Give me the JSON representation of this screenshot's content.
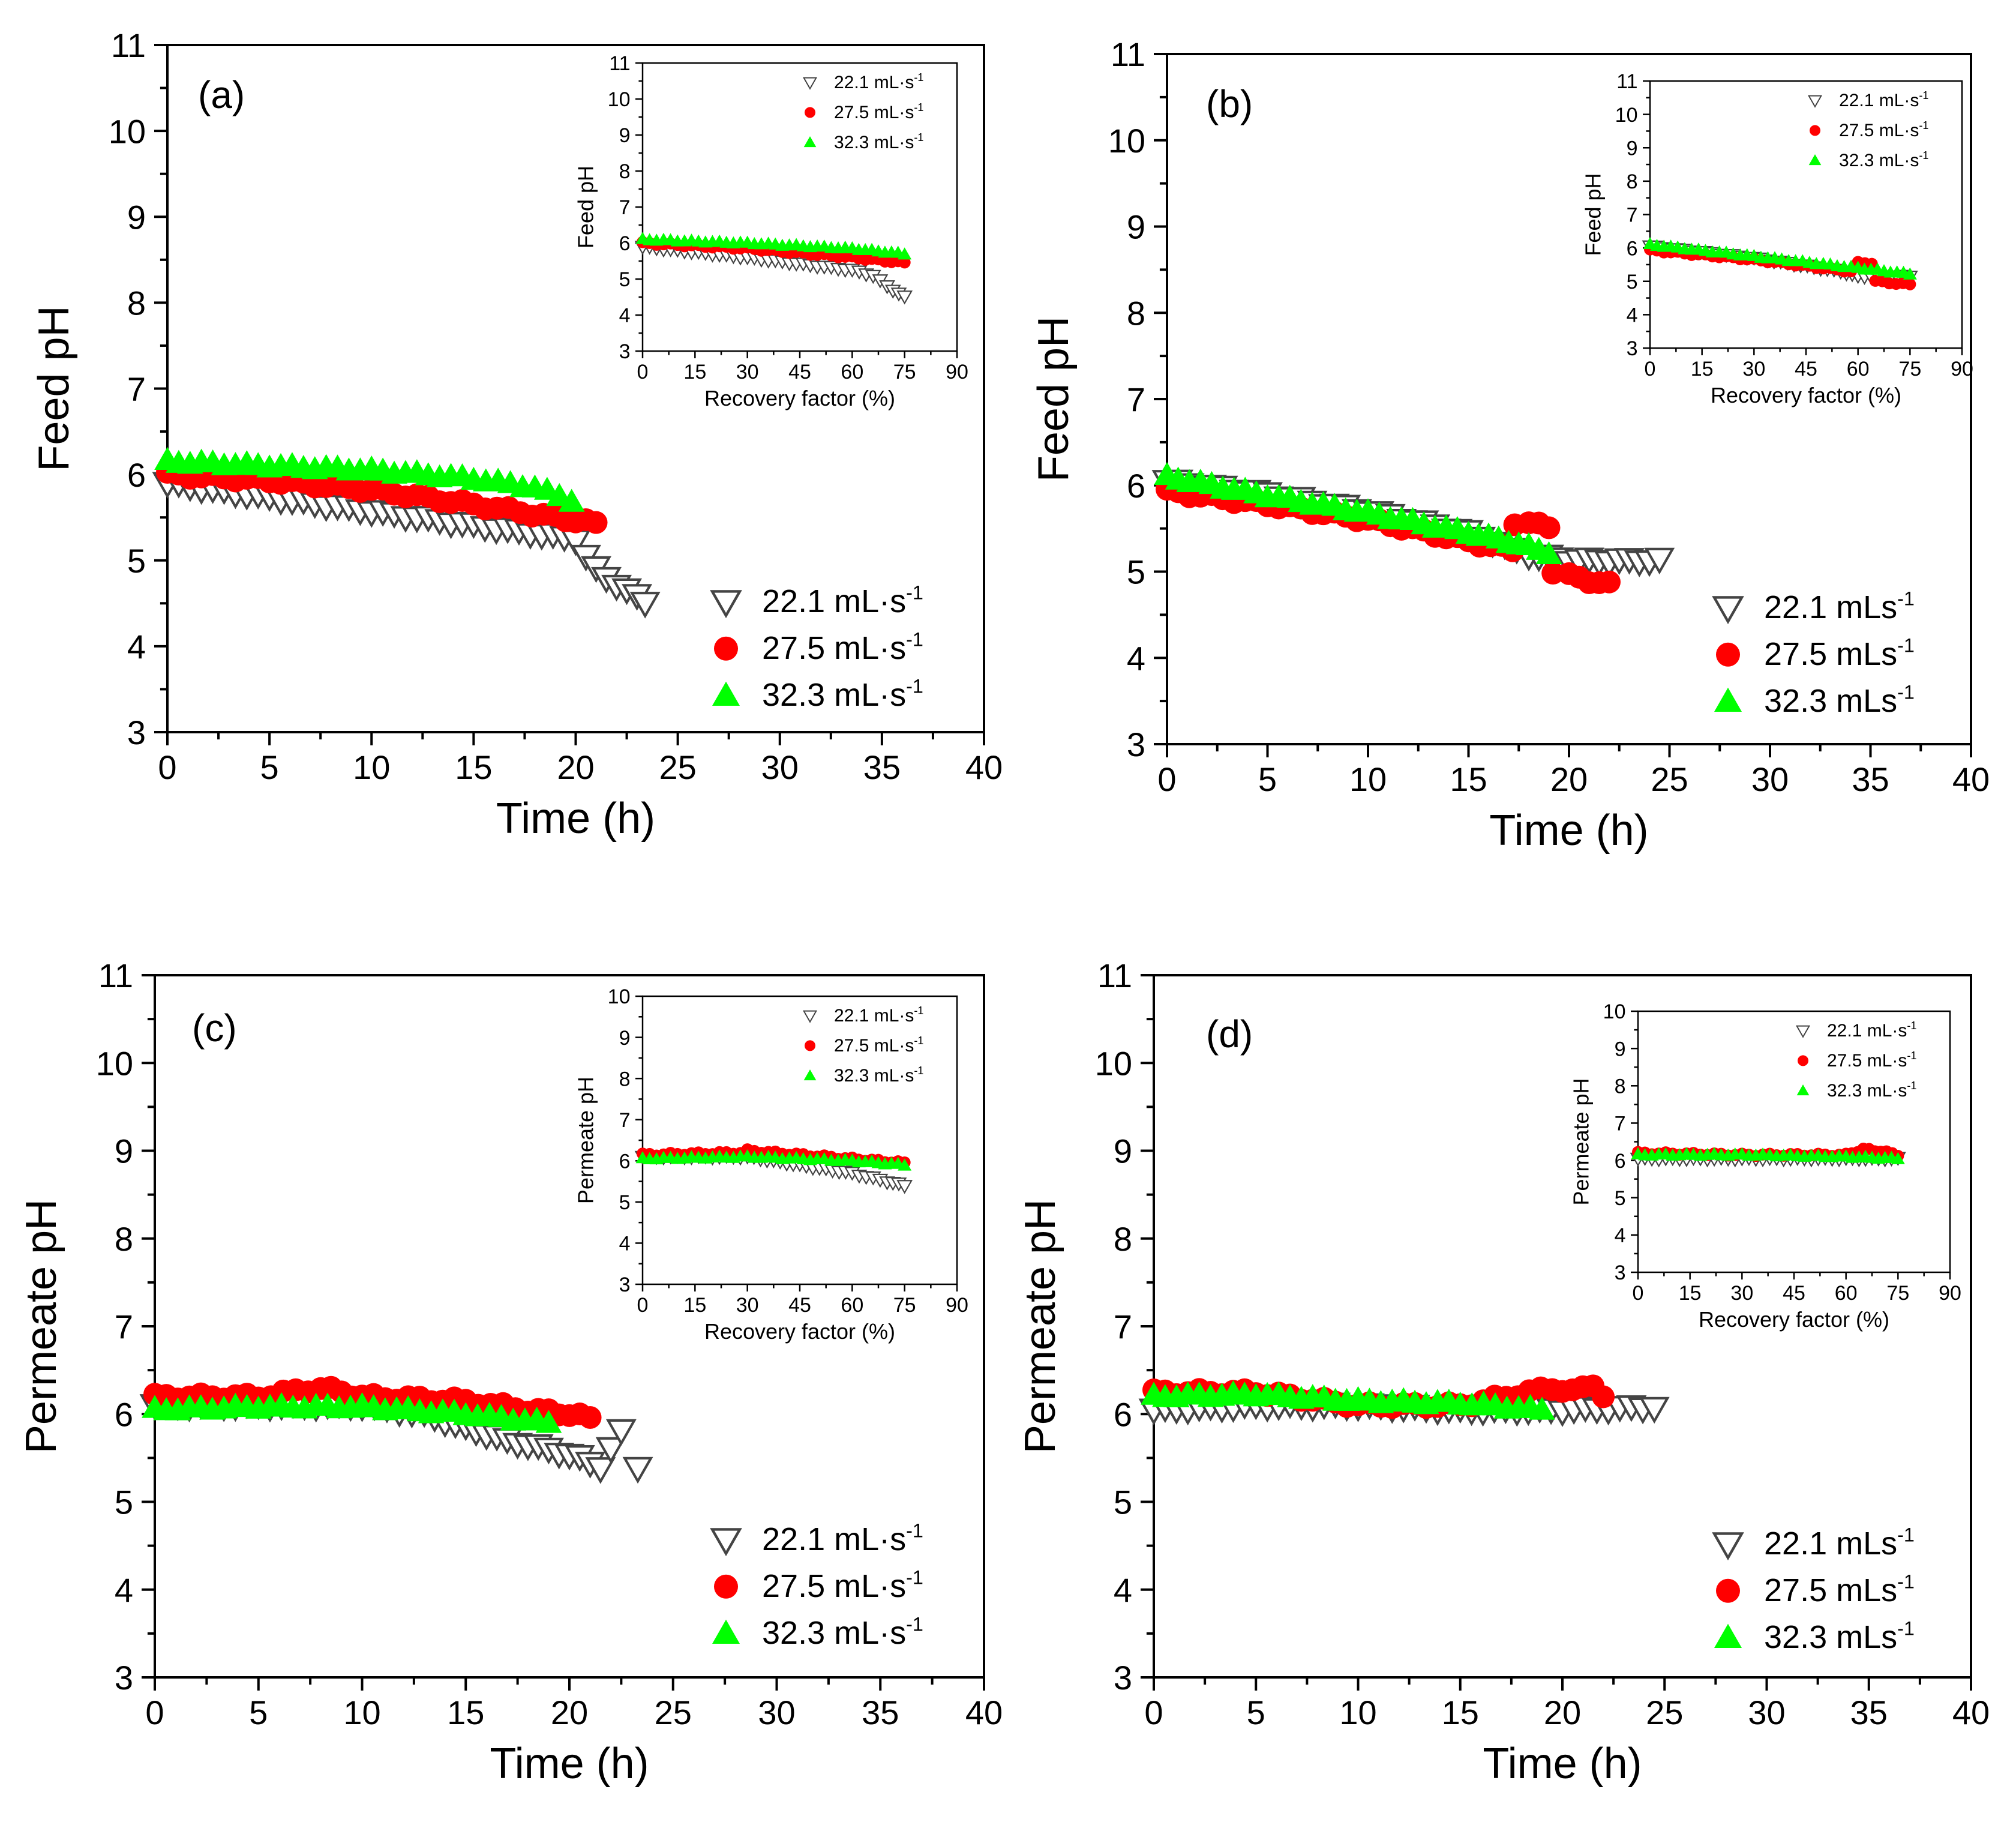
{
  "chart_data": [
    {
      "id": "a",
      "panel_label": "(a)",
      "type": "scatter",
      "xlabel": "Time (h)",
      "ylabel": "Feed pH",
      "xlim": [
        0,
        40
      ],
      "ylim": [
        3,
        11
      ],
      "xticks": [
        "0",
        "5",
        "10",
        "15",
        "20",
        "25",
        "30",
        "35",
        "40"
      ],
      "yticks": [
        "3",
        "4",
        "5",
        "6",
        "7",
        "8",
        "9",
        "10",
        "11"
      ],
      "legend": {
        "position": "bottom-right",
        "labels": [
          "22.1 mL·s",
          "27.5 mL·s",
          "32.3 mL·s"
        ],
        "superscript": "-1"
      },
      "series": [
        {
          "name": "22.1 mL·s-1",
          "marker": "triangle-down-open",
          "color": "#555555",
          "x": [
            0,
            20,
            20.5,
            21,
            21.5,
            22,
            22.5,
            23,
            23.4
          ],
          "y": [
            5.9,
            5.25,
            5.05,
            4.9,
            4.8,
            4.72,
            4.65,
            4.58,
            4.52
          ]
        },
        {
          "name": "27.5 mL·s-1",
          "marker": "circle",
          "color": "#ff0000",
          "x": [
            0,
            5,
            10,
            15,
            19,
            21
          ],
          "y": [
            6.0,
            5.93,
            5.82,
            5.65,
            5.5,
            5.43
          ]
        },
        {
          "name": "32.3 mL·s-1",
          "marker": "triangle-up",
          "color": "#00ff00",
          "x": [
            0,
            10,
            15,
            18,
            19.8
          ],
          "y": [
            6.15,
            6.05,
            5.95,
            5.85,
            5.7
          ]
        }
      ],
      "inset": {
        "xlabel": "Recovery factor (%)",
        "ylabel": "Feed pH",
        "xlim": [
          0,
          90
        ],
        "ylim": [
          3,
          11
        ],
        "xticks": [
          "0",
          "15",
          "30",
          "45",
          "60",
          "75",
          "90"
        ],
        "yticks": [
          "3",
          "4",
          "5",
          "6",
          "7",
          "8",
          "9",
          "10",
          "11"
        ],
        "legend": {
          "position": "top-right",
          "labels": [
            "22.1 mL·s",
            "27.5 mL·s",
            "32.3 mL·s"
          ],
          "superscript": "-1"
        },
        "series": [
          {
            "name": "22.1 mL·s-1",
            "x": [
              0,
              30,
              60,
              66,
              70,
              75
            ],
            "y": [
              5.9,
              5.6,
              5.25,
              5.1,
              4.8,
              4.5
            ]
          },
          {
            "name": "27.5 mL·s-1",
            "x": [
              0,
              30,
              60,
              75
            ],
            "y": [
              6.0,
              5.85,
              5.6,
              5.45
            ]
          },
          {
            "name": "32.3 mL·s-1",
            "x": [
              0,
              30,
              60,
              75
            ],
            "y": [
              6.1,
              6.0,
              5.85,
              5.7
            ]
          }
        ]
      }
    },
    {
      "id": "b",
      "panel_label": "(b)",
      "type": "scatter",
      "xlabel": "Time (h)",
      "ylabel": "Feed pH",
      "xlim": [
        0,
        40
      ],
      "ylim": [
        3,
        11
      ],
      "xticks": [
        "0",
        "5",
        "10",
        "15",
        "20",
        "25",
        "30",
        "35",
        "40"
      ],
      "yticks": [
        "3",
        "4",
        "5",
        "6",
        "7",
        "8",
        "9",
        "10",
        "11"
      ],
      "legend": {
        "position": "bottom-right",
        "labels": [
          "22.1 mLs",
          "27.5 mLs",
          "32.3 mLs"
        ],
        "superscript": "-1"
      },
      "series": [
        {
          "name": "22.1 mLs-1",
          "marker": "triangle-down-open",
          "color": "#555555",
          "x": [
            0,
            5,
            10,
            15,
            18,
            20,
            22,
            24.5
          ],
          "y": [
            6.05,
            5.9,
            5.7,
            5.45,
            5.2,
            5.13,
            5.13,
            5.13
          ]
        },
        {
          "name": "27.5 mLs-1",
          "marker": "circle",
          "color": "#ff0000",
          "x": [
            0,
            5,
            10,
            15,
            17.2,
            17.3,
            18,
            19,
            19.2,
            20,
            21,
            22
          ],
          "y": [
            5.93,
            5.78,
            5.6,
            5.35,
            5.25,
            5.57,
            5.55,
            5.53,
            5.0,
            4.95,
            4.9,
            4.85
          ]
        },
        {
          "name": "32.3 mLs-1",
          "marker": "triangle-up",
          "color": "#00ff00",
          "x": [
            0,
            5,
            10,
            15,
            17,
            19
          ],
          "y": [
            6.1,
            5.88,
            5.68,
            5.45,
            5.35,
            5.22
          ]
        }
      ],
      "inset": {
        "xlabel": "Recovery factor (%)",
        "ylabel": "Feed pH",
        "xlim": [
          0,
          90
        ],
        "ylim": [
          3,
          11
        ],
        "xticks": [
          "0",
          "15",
          "30",
          "45",
          "60",
          "75",
          "90"
        ],
        "yticks": [
          "3",
          "4",
          "5",
          "6",
          "7",
          "8",
          "9",
          "10",
          "11"
        ],
        "legend": {
          "position": "top-right",
          "labels": [
            "22.1 mL·s",
            "27.5 mL·s",
            "32.3 mL·s"
          ],
          "superscript": "-1"
        },
        "series": [
          {
            "name": "22.1 mL·s-1",
            "x": [
              0,
              30,
              55,
              60,
              75
            ],
            "y": [
              6.05,
              5.7,
              5.3,
              5.15,
              5.15
            ]
          },
          {
            "name": "27.5 mL·s-1",
            "x": [
              0,
              30,
              58,
              60,
              64,
              65,
              75
            ],
            "y": [
              5.93,
              5.65,
              5.3,
              5.55,
              5.55,
              5.0,
              4.9
            ]
          },
          {
            "name": "32.3 mL·s-1",
            "x": [
              0,
              30,
              60,
              75
            ],
            "y": [
              6.1,
              5.75,
              5.4,
              5.22
            ]
          }
        ]
      }
    },
    {
      "id": "c",
      "panel_label": "(c)",
      "type": "scatter",
      "xlabel": "Time (h)",
      "ylabel": "Permeate pH",
      "xlim": [
        0,
        40
      ],
      "ylim": [
        3,
        11
      ],
      "xticks": [
        "0",
        "5",
        "10",
        "15",
        "20",
        "25",
        "30",
        "35",
        "40"
      ],
      "yticks": [
        "3",
        "4",
        "5",
        "6",
        "7",
        "8",
        "9",
        "10",
        "11"
      ],
      "legend": {
        "position": "bottom-right",
        "labels": [
          "22.1 mL·s",
          "27.5 mL·s",
          "32.3 mL·s"
        ],
        "superscript": "-1"
      },
      "series": [
        {
          "name": "22.1 mL·s-1",
          "marker": "triangle-down-open",
          "color": "#555555",
          "x": [
            0,
            5,
            10,
            13,
            15,
            17,
            19,
            20.5,
            21.5,
            22.5,
            23.3
          ],
          "y": [
            6.1,
            6.1,
            6.1,
            6.0,
            5.85,
            5.7,
            5.6,
            5.5,
            5.4,
            5.8,
            5.4
          ]
        },
        {
          "name": "27.5 mL·s-1",
          "marker": "circle",
          "color": "#ff0000",
          "x": [
            0,
            5,
            8,
            10,
            15,
            18,
            20,
            21
          ],
          "y": [
            6.2,
            6.2,
            6.3,
            6.2,
            6.15,
            6.05,
            6.0,
            5.95
          ]
        },
        {
          "name": "32.3 mL·s-1",
          "marker": "triangle-up",
          "color": "#00ff00",
          "x": [
            0,
            5,
            10,
            15,
            19
          ],
          "y": [
            6.05,
            6.08,
            6.08,
            6.0,
            5.9
          ]
        }
      ],
      "inset": {
        "xlabel": "Recovery factor (%)",
        "ylabel": "Permeate pH",
        "xlim": [
          0,
          90
        ],
        "ylim": [
          3,
          10
        ],
        "xticks": [
          "0",
          "15",
          "30",
          "45",
          "60",
          "75",
          "90"
        ],
        "yticks": [
          "3",
          "4",
          "5",
          "6",
          "7",
          "8",
          "9",
          "10"
        ],
        "legend": {
          "position": "top-right",
          "labels": [
            "22.1 mL·s",
            "27.5 mL·s",
            "32.3 mL·s"
          ],
          "superscript": "-1"
        },
        "series": [
          {
            "name": "22.1 mL·s-1",
            "x": [
              0,
              30,
              45,
              60,
              70,
              75
            ],
            "y": [
              6.1,
              6.1,
              5.9,
              5.7,
              5.5,
              5.4
            ]
          },
          {
            "name": "27.5 mL·s-1",
            "x": [
              0,
              28,
              30,
              60,
              75
            ],
            "y": [
              6.15,
              6.2,
              6.25,
              6.05,
              5.95
            ]
          },
          {
            "name": "32.3 mL·s-1",
            "x": [
              0,
              30,
              60,
              75
            ],
            "y": [
              6.05,
              6.1,
              6.0,
              5.9
            ]
          }
        ]
      }
    },
    {
      "id": "d",
      "panel_label": "(d)",
      "type": "scatter",
      "xlabel": "Time (h)",
      "ylabel": "Permeate pH",
      "xlim": [
        0,
        40
      ],
      "ylim": [
        3,
        11
      ],
      "xticks": [
        "0",
        "5",
        "10",
        "15",
        "20",
        "25",
        "30",
        "35",
        "40"
      ],
      "yticks": [
        "3",
        "4",
        "5",
        "6",
        "7",
        "8",
        "9",
        "10",
        "11"
      ],
      "legend": {
        "position": "bottom-right",
        "labels": [
          "22.1 mLs",
          "27.5 mLs",
          "32.3 mLs"
        ],
        "superscript": "-1"
      },
      "series": [
        {
          "name": "22.1 mLs-1",
          "marker": "triangle-down-open",
          "color": "#555555",
          "x": [
            0,
            5,
            10,
            15,
            20,
            24.5
          ],
          "y": [
            6.05,
            6.1,
            6.1,
            6.05,
            6.05,
            6.08
          ]
        },
        {
          "name": "27.5 mLs-1",
          "marker": "circle",
          "color": "#ff0000",
          "x": [
            0,
            5,
            10,
            15,
            19.5,
            20.5,
            21.5,
            22
          ],
          "y": [
            6.25,
            6.25,
            6.1,
            6.1,
            6.3,
            6.25,
            6.35,
            6.2
          ]
        },
        {
          "name": "32.3 mLs-1",
          "marker": "triangle-up",
          "color": "#00ff00",
          "x": [
            0,
            5,
            10,
            15,
            19
          ],
          "y": [
            6.2,
            6.22,
            6.15,
            6.12,
            6.05
          ]
        }
      ],
      "inset": {
        "xlabel": "Recovery factor (%)",
        "ylabel": "Permeate pH",
        "xlim": [
          0,
          90
        ],
        "ylim": [
          3,
          10
        ],
        "xticks": [
          "0",
          "15",
          "30",
          "45",
          "60",
          "75",
          "90"
        ],
        "yticks": [
          "3",
          "4",
          "5",
          "6",
          "7",
          "8",
          "9",
          "10"
        ],
        "legend": {
          "position": "top-right",
          "labels": [
            "22.1 mL·s",
            "27.5 mL·s",
            "32.3 mL·s"
          ],
          "superscript": "-1"
        },
        "series": [
          {
            "name": "22.1 mL·s-1",
            "x": [
              0,
              30,
              60,
              75
            ],
            "y": [
              6.05,
              6.05,
              6.05,
              6.05
            ]
          },
          {
            "name": "27.5 mL·s-1",
            "x": [
              0,
              30,
              60,
              65,
              70,
              75
            ],
            "y": [
              6.2,
              6.15,
              6.15,
              6.3,
              6.25,
              6.15
            ]
          },
          {
            "name": "32.3 mL·s-1",
            "x": [
              0,
              30,
              60,
              75
            ],
            "y": [
              6.15,
              6.15,
              6.1,
              6.05
            ]
          }
        ]
      }
    }
  ]
}
